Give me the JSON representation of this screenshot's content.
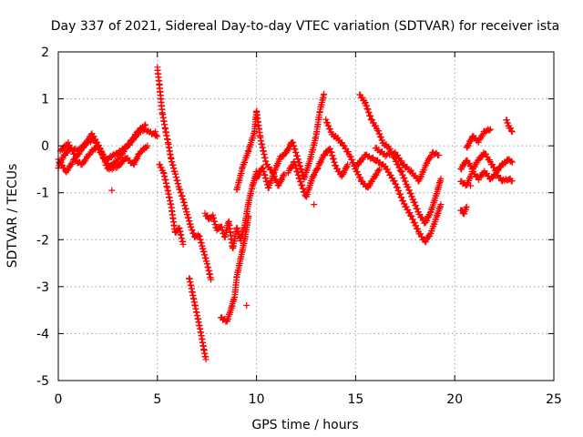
{
  "chart_data": {
    "type": "scatter",
    "title": "Day 337 of 2021, Sidereal Day-to-day VTEC variation (SDTVAR) for receiver ista",
    "xlabel": "GPS time / hours",
    "ylabel": "SDTVAR / TECUs",
    "xlim": [
      0,
      25
    ],
    "ylim": [
      -5,
      2
    ],
    "xticks": [
      0,
      5,
      10,
      15,
      20,
      25
    ],
    "yticks": [
      -5,
      -4,
      -3,
      -2,
      -1,
      0,
      1,
      2
    ],
    "grid": true,
    "marker": "+",
    "colors": {
      "series": "#ff0000",
      "grid": "#a0a0a0",
      "axis": "#000000"
    },
    "series": [
      {
        "name": "SDTVAR",
        "tracks": [
          [
            [
              0.0,
              -0.45
            ],
            [
              0.3,
              -0.2
            ],
            [
              0.6,
              -0.05
            ],
            [
              1.0,
              -0.1
            ],
            [
              1.4,
              0.05
            ],
            [
              1.8,
              0.15
            ],
            [
              2.2,
              -0.2
            ],
            [
              2.6,
              -0.45
            ],
            [
              3.0,
              -0.3
            ],
            [
              3.4,
              -0.05
            ],
            [
              3.8,
              0.15
            ],
            [
              4.2,
              0.35
            ],
            [
              4.6,
              0.3
            ],
            [
              5.0,
              0.2
            ]
          ],
          [
            [
              0.0,
              -0.3
            ],
            [
              0.4,
              -0.55
            ],
            [
              0.8,
              -0.3
            ],
            [
              1.2,
              -0.4
            ],
            [
              1.6,
              -0.15
            ],
            [
              2.0,
              0.0
            ],
            [
              2.4,
              -0.3
            ],
            [
              2.8,
              -0.2
            ],
            [
              3.2,
              -0.1
            ],
            [
              3.6,
              0.05
            ],
            [
              4.0,
              0.3
            ],
            [
              4.4,
              0.45
            ]
          ],
          [
            [
              0.1,
              -0.1
            ],
            [
              0.5,
              0.05
            ],
            [
              0.9,
              -0.25
            ],
            [
              1.3,
              0.0
            ],
            [
              1.7,
              0.25
            ],
            [
              2.1,
              -0.05
            ],
            [
              2.5,
              -0.5
            ],
            [
              3.0,
              -0.45
            ],
            [
              3.4,
              -0.25
            ],
            [
              3.8,
              -0.4
            ],
            [
              4.1,
              -0.15
            ],
            [
              4.5,
              0.0
            ]
          ],
          [
            [
              5.0,
              1.65
            ],
            [
              5.1,
              1.3
            ],
            [
              5.25,
              0.7
            ],
            [
              5.4,
              0.35
            ],
            [
              5.55,
              0.05
            ],
            [
              5.7,
              -0.3
            ],
            [
              5.9,
              -0.6
            ],
            [
              6.1,
              -0.9
            ],
            [
              6.3,
              -1.15
            ],
            [
              6.5,
              -1.45
            ],
            [
              6.7,
              -1.75
            ],
            [
              6.9,
              -1.95
            ],
            [
              7.1,
              -1.9
            ],
            [
              7.3,
              -2.2
            ],
            [
              7.5,
              -2.5
            ],
            [
              7.7,
              -2.85
            ]
          ],
          [
            [
              5.1,
              -0.4
            ],
            [
              5.3,
              -0.55
            ],
            [
              5.5,
              -0.9
            ],
            [
              5.7,
              -1.3
            ],
            [
              5.9,
              -1.85
            ],
            [
              6.1,
              -1.75
            ],
            [
              6.3,
              -2.1
            ]
          ],
          [
            [
              6.6,
              -2.8
            ],
            [
              6.8,
              -3.2
            ],
            [
              7.0,
              -3.6
            ],
            [
              7.2,
              -4.0
            ],
            [
              7.35,
              -4.35
            ],
            [
              7.45,
              -4.55
            ]
          ],
          [
            [
              7.4,
              -1.45
            ],
            [
              7.6,
              -1.55
            ],
            [
              7.8,
              -1.5
            ],
            [
              8.0,
              -1.8
            ],
            [
              8.2,
              -1.7
            ],
            [
              8.4,
              -1.95
            ],
            [
              8.6,
              -1.6
            ],
            [
              8.8,
              -2.2
            ],
            [
              9.0,
              -1.75
            ],
            [
              9.2,
              -2.0
            ],
            [
              9.4,
              -1.7
            ],
            [
              9.6,
              -1.2
            ],
            [
              9.8,
              -0.85
            ],
            [
              10.0,
              -0.55
            ]
          ],
          [
            [
              8.2,
              -3.65
            ],
            [
              8.5,
              -3.75
            ],
            [
              8.7,
              -3.5
            ],
            [
              8.9,
              -3.2
            ],
            [
              9.0,
              -2.8
            ],
            [
              9.2,
              -2.4
            ],
            [
              9.4,
              -2.0
            ],
            [
              9.6,
              -1.5
            ]
          ],
          [
            [
              9.0,
              -0.95
            ],
            [
              9.3,
              -0.45
            ],
            [
              9.6,
              -0.1
            ],
            [
              9.9,
              0.3
            ],
            [
              10.0,
              0.75
            ],
            [
              10.2,
              0.15
            ],
            [
              10.5,
              -0.4
            ],
            [
              10.8,
              -0.55
            ],
            [
              11.1,
              -0.85
            ],
            [
              11.4,
              -0.6
            ]
          ],
          [
            [
              10.0,
              -0.7
            ],
            [
              10.3,
              -0.45
            ],
            [
              10.6,
              -0.9
            ],
            [
              10.9,
              -0.55
            ],
            [
              11.2,
              -0.25
            ],
            [
              11.5,
              -0.15
            ],
            [
              11.8,
              0.1
            ],
            [
              12.1,
              -0.3
            ],
            [
              12.4,
              -0.7
            ],
            [
              12.7,
              -0.3
            ],
            [
              13.0,
              0.2
            ],
            [
              13.2,
              0.75
            ],
            [
              13.4,
              1.1
            ]
          ],
          [
            [
              11.6,
              -0.55
            ],
            [
              11.9,
              -0.35
            ],
            [
              12.2,
              -0.75
            ],
            [
              12.5,
              -1.1
            ],
            [
              12.8,
              -0.7
            ],
            [
              13.1,
              -0.45
            ],
            [
              13.4,
              -0.2
            ],
            [
              13.7,
              -0.05
            ],
            [
              14.0,
              -0.45
            ],
            [
              14.3,
              -0.65
            ],
            [
              14.6,
              -0.4
            ]
          ],
          [
            [
              13.5,
              0.55
            ],
            [
              13.8,
              0.25
            ],
            [
              14.1,
              0.15
            ],
            [
              14.4,
              0.0
            ],
            [
              14.7,
              -0.2
            ],
            [
              15.0,
              -0.5
            ],
            [
              15.3,
              -0.75
            ],
            [
              15.6,
              -0.9
            ],
            [
              15.9,
              -0.7
            ],
            [
              16.2,
              -0.5
            ]
          ],
          [
            [
              15.2,
              1.1
            ],
            [
              15.5,
              0.9
            ],
            [
              15.8,
              0.55
            ],
            [
              16.1,
              0.35
            ],
            [
              16.4,
              0.05
            ],
            [
              16.7,
              -0.05
            ],
            [
              17.0,
              -0.3
            ],
            [
              17.3,
              -0.55
            ],
            [
              17.6,
              -0.85
            ],
            [
              17.9,
              -1.15
            ],
            [
              18.2,
              -1.45
            ],
            [
              18.5,
              -1.65
            ],
            [
              18.8,
              -1.4
            ],
            [
              19.1,
              -1.0
            ],
            [
              19.3,
              -0.7
            ]
          ],
          [
            [
              15.0,
              -0.45
            ],
            [
              15.5,
              -0.2
            ],
            [
              16.0,
              -0.3
            ],
            [
              16.5,
              -0.45
            ],
            [
              17.0,
              -0.8
            ],
            [
              17.4,
              -1.2
            ],
            [
              17.8,
              -1.5
            ],
            [
              18.2,
              -1.85
            ],
            [
              18.5,
              -2.05
            ],
            [
              18.8,
              -1.85
            ],
            [
              19.1,
              -1.5
            ],
            [
              19.3,
              -1.25
            ]
          ],
          [
            [
              16.0,
              -0.05
            ],
            [
              16.5,
              -0.2
            ],
            [
              17.0,
              -0.15
            ],
            [
              17.4,
              -0.4
            ],
            [
              17.8,
              -0.55
            ],
            [
              18.2,
              -0.75
            ],
            [
              18.6,
              -0.35
            ],
            [
              18.9,
              -0.15
            ],
            [
              19.2,
              -0.2
            ]
          ],
          [
            [
              20.3,
              -1.35
            ],
            [
              20.45,
              -1.45
            ],
            [
              20.6,
              -1.3
            ]
          ],
          [
            [
              20.3,
              -0.5
            ],
            [
              20.6,
              -0.3
            ],
            [
              20.9,
              -0.5
            ],
            [
              21.2,
              -0.3
            ],
            [
              21.5,
              -0.15
            ],
            [
              21.8,
              -0.35
            ],
            [
              22.1,
              -0.55
            ],
            [
              22.4,
              -0.4
            ],
            [
              22.7,
              -0.3
            ],
            [
              22.9,
              -0.35
            ]
          ],
          [
            [
              20.3,
              -0.75
            ],
            [
              20.6,
              -0.85
            ],
            [
              20.9,
              -0.55
            ],
            [
              21.2,
              -0.7
            ],
            [
              21.5,
              -0.55
            ],
            [
              21.8,
              -0.7
            ],
            [
              22.1,
              -0.6
            ],
            [
              22.4,
              -0.75
            ],
            [
              22.7,
              -0.7
            ],
            [
              22.9,
              -0.75
            ]
          ],
          [
            [
              20.6,
              -0.05
            ],
            [
              20.9,
              0.2
            ],
            [
              21.2,
              0.1
            ],
            [
              21.5,
              0.3
            ],
            [
              21.8,
              0.35
            ]
          ],
          [
            [
              22.6,
              0.55
            ],
            [
              22.75,
              0.4
            ],
            [
              22.9,
              0.3
            ]
          ]
        ],
        "isolated": [
          [
            2.7,
            -0.95
          ],
          [
            4.9,
            0.3
          ],
          [
            9.5,
            -3.4
          ],
          [
            12.9,
            -1.25
          ],
          [
            20.8,
            -0.85
          ]
        ]
      }
    ]
  }
}
